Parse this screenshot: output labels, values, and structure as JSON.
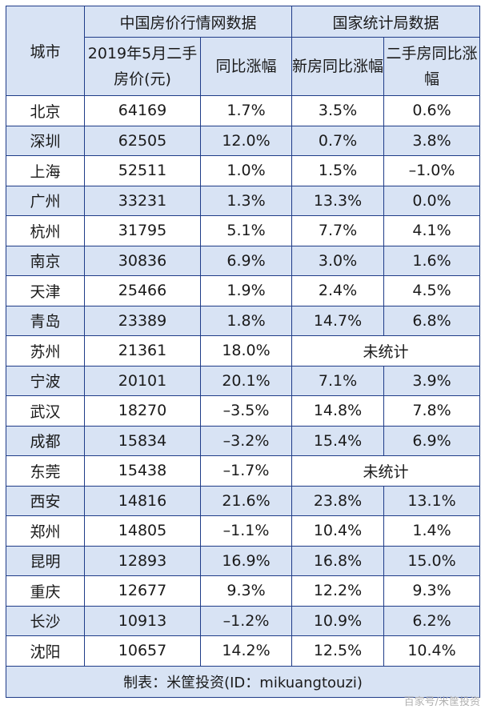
{
  "header": {
    "city": "城市",
    "group_a": "中国房价行情网数据",
    "group_b": "国家统计局数据",
    "col_price": "2019年5月二手房价(元)",
    "col_yoy": "同比涨幅",
    "col_new": "新房同比涨幅",
    "col_second": "二手房同比涨幅"
  },
  "rows": [
    {
      "city": "北京",
      "price": "64169",
      "yoy": "1.7%",
      "new": "3.5%",
      "second": "0.6%"
    },
    {
      "city": "深圳",
      "price": "62505",
      "yoy": "12.0%",
      "new": "0.7%",
      "second": "3.8%"
    },
    {
      "city": "上海",
      "price": "52511",
      "yoy": "1.0%",
      "new": "1.5%",
      "second": "–1.0%"
    },
    {
      "city": "广州",
      "price": "33231",
      "yoy": "1.3%",
      "new": "13.3%",
      "second": "0.0%"
    },
    {
      "city": "杭州",
      "price": "31795",
      "yoy": "5.1%",
      "new": "7.7%",
      "second": "4.1%"
    },
    {
      "city": "南京",
      "price": "30836",
      "yoy": "6.9%",
      "new": "3.0%",
      "second": "1.6%"
    },
    {
      "city": "天津",
      "price": "25466",
      "yoy": "1.9%",
      "new": "2.4%",
      "second": "4.5%"
    },
    {
      "city": "青岛",
      "price": "23389",
      "yoy": "1.8%",
      "new": "14.7%",
      "second": "6.8%"
    },
    {
      "city": "苏州",
      "price": "21361",
      "yoy": "18.0%",
      "merged": "未统计"
    },
    {
      "city": "宁波",
      "price": "20101",
      "yoy": "20.1%",
      "new": "7.1%",
      "second": "3.9%"
    },
    {
      "city": "武汉",
      "price": "18270",
      "yoy": "–3.5%",
      "new": "14.8%",
      "second": "7.8%"
    },
    {
      "city": "成都",
      "price": "15834",
      "yoy": "–3.2%",
      "new": "15.4%",
      "second": "6.9%"
    },
    {
      "city": "东莞",
      "price": "15438",
      "yoy": "–1.7%",
      "merged": "未统计"
    },
    {
      "city": "西安",
      "price": "14816",
      "yoy": "21.6%",
      "new": "23.8%",
      "second": "13.1%"
    },
    {
      "city": "郑州",
      "price": "14805",
      "yoy": "–1.1%",
      "new": "10.4%",
      "second": "1.4%"
    },
    {
      "city": "昆明",
      "price": "12893",
      "yoy": "16.9%",
      "new": "16.8%",
      "second": "15.0%"
    },
    {
      "city": "重庆",
      "price": "12677",
      "yoy": "9.3%",
      "new": "12.2%",
      "second": "9.3%"
    },
    {
      "city": "长沙",
      "price": "10913",
      "yoy": "–1.2%",
      "new": "10.9%",
      "second": "6.2%"
    },
    {
      "city": "沈阳",
      "price": "10657",
      "yoy": "14.2%",
      "new": "12.5%",
      "second": "10.4%"
    }
  ],
  "footer": "制表：米筐投资(ID：mikuangtouzi)",
  "watermark": "百家号/米筐投资"
}
